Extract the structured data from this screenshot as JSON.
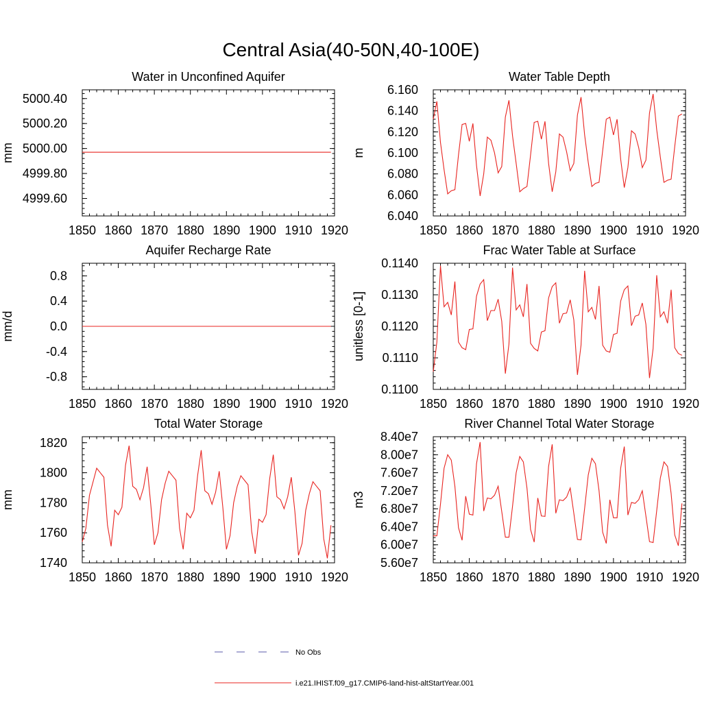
{
  "page": {
    "title": "Central Asia(40-50N,40-100E)"
  },
  "colors": {
    "series": "#e8231f",
    "no_obs": "#5a5aa8",
    "axis": "#000000"
  },
  "legend": [
    {
      "label": "No Obs",
      "style": "dashed",
      "color": "#5a5aa8"
    },
    {
      "label": "i.e21.IHIST.f09_g17.CMIP6-land-hist-altStartYear.001",
      "style": "solid",
      "color": "#e8231f"
    }
  ],
  "chart_data": [
    {
      "type": "line",
      "title": "Water in Unconfined Aquifer",
      "ylabel": "mm",
      "xlim": [
        1850,
        1920
      ],
      "ylim": [
        4999.46,
        5000.47
      ],
      "x_ticks": [
        "1850",
        "1860",
        "1870",
        "1880",
        "1890",
        "1900",
        "1910",
        "1920"
      ],
      "y_ticks": [
        {
          "value": 4999.6,
          "label": "4999.60"
        },
        {
          "value": 4999.8,
          "label": "4999.80"
        },
        {
          "value": 5000.0,
          "label": "5000.00"
        },
        {
          "value": 5000.2,
          "label": "5000.20"
        },
        {
          "value": 5000.4,
          "label": "5000.40"
        }
      ],
      "series": [
        {
          "x_start": 1850,
          "x_step": 1,
          "values": [
            4999.97,
            4999.97,
            4999.97,
            4999.97,
            4999.97,
            4999.97,
            4999.97,
            4999.97,
            4999.97,
            4999.97,
            4999.97,
            4999.97,
            4999.97,
            4999.97,
            4999.97,
            4999.97,
            4999.97,
            4999.97,
            4999.97,
            4999.97,
            4999.97,
            4999.97,
            4999.97,
            4999.97,
            4999.97,
            4999.97,
            4999.97,
            4999.97,
            4999.97,
            4999.97,
            4999.97,
            4999.97,
            4999.97,
            4999.97,
            4999.97,
            4999.97,
            4999.97,
            4999.97,
            4999.97,
            4999.97,
            4999.97,
            4999.97,
            4999.97,
            4999.97,
            4999.97,
            4999.97,
            4999.97,
            4999.97,
            4999.97,
            4999.97,
            4999.97,
            4999.97,
            4999.97,
            4999.97,
            4999.97,
            4999.97,
            4999.97,
            4999.97,
            4999.97,
            4999.97,
            4999.97,
            4999.97,
            4999.97,
            4999.97,
            4999.97,
            4999.97,
            4999.97,
            4999.97,
            4999.97,
            4999.97
          ]
        }
      ]
    },
    {
      "type": "line",
      "title": "Water Table Depth",
      "ylabel": "m",
      "xlim": [
        1850,
        1920
      ],
      "ylim": [
        6.04,
        6.16
      ],
      "x_ticks": [
        "1850",
        "1860",
        "1870",
        "1880",
        "1890",
        "1900",
        "1910",
        "1920"
      ],
      "y_ticks": [
        {
          "value": 6.04,
          "label": "6.040"
        },
        {
          "value": 6.06,
          "label": "6.060"
        },
        {
          "value": 6.08,
          "label": "6.080"
        },
        {
          "value": 6.1,
          "label": "6.100"
        },
        {
          "value": 6.12,
          "label": "6.120"
        },
        {
          "value": 6.14,
          "label": "6.140"
        },
        {
          "value": 6.16,
          "label": "6.160"
        }
      ],
      "series": [
        {
          "x_start": 1850,
          "x_step": 1,
          "values": [
            6.132,
            6.149,
            6.11,
            6.084,
            6.061,
            6.064,
            6.065,
            6.098,
            6.127,
            6.128,
            6.111,
            6.128,
            6.088,
            6.059,
            6.08,
            6.115,
            6.112,
            6.1,
            6.081,
            6.087,
            6.134,
            6.15,
            6.116,
            6.09,
            6.063,
            6.066,
            6.068,
            6.098,
            6.129,
            6.13,
            6.113,
            6.13,
            6.09,
            6.063,
            6.082,
            6.118,
            6.115,
            6.101,
            6.083,
            6.09,
            6.136,
            6.153,
            6.117,
            6.091,
            6.068,
            6.071,
            6.072,
            6.102,
            6.132,
            6.134,
            6.117,
            6.132,
            6.094,
            6.067,
            6.086,
            6.121,
            6.118,
            6.105,
            6.086,
            6.093,
            6.138,
            6.156,
            6.122,
            6.096,
            6.072,
            6.074,
            6.075,
            6.106,
            6.135,
            6.137
          ]
        }
      ]
    },
    {
      "type": "line",
      "title": "Aquifer Recharge Rate",
      "ylabel": "mm/d",
      "xlim": [
        1850,
        1920
      ],
      "ylim": [
        -1.0,
        1.0
      ],
      "x_ticks": [
        "1850",
        "1860",
        "1870",
        "1880",
        "1890",
        "1900",
        "1910",
        "1920"
      ],
      "y_ticks": [
        {
          "value": -0.8,
          "label": "-0.8"
        },
        {
          "value": -0.4,
          "label": "-0.4"
        },
        {
          "value": 0.0,
          "label": "0.0"
        },
        {
          "value": 0.4,
          "label": "0.4"
        },
        {
          "value": 0.8,
          "label": "0.8"
        }
      ],
      "series": [
        {
          "x_start": 1850,
          "x_step": 1,
          "values": [
            0,
            0,
            0,
            0,
            0,
            0,
            0,
            0,
            0,
            0,
            0,
            0,
            0,
            0,
            0,
            0,
            0,
            0,
            0,
            0,
            0,
            0,
            0,
            0,
            0,
            0,
            0,
            0,
            0,
            0,
            0,
            0,
            0,
            0,
            0,
            0,
            0,
            0,
            0,
            0,
            0,
            0,
            0,
            0,
            0,
            0,
            0,
            0,
            0,
            0,
            0,
            0,
            0,
            0,
            0,
            0,
            0,
            0,
            0,
            0,
            0,
            0,
            0,
            0,
            0,
            0,
            0,
            0,
            0,
            0
          ]
        }
      ]
    },
    {
      "type": "line",
      "title": "Frac Water Table at Surface",
      "ylabel": "unitless [0-1]",
      "xlim": [
        1850,
        1920
      ],
      "ylim": [
        0.11,
        0.114
      ],
      "x_ticks": [
        "1850",
        "1860",
        "1870",
        "1880",
        "1890",
        "1900",
        "1910",
        "1920"
      ],
      "y_ticks": [
        {
          "value": 0.11,
          "label": "0.1100"
        },
        {
          "value": 0.111,
          "label": "0.1110"
        },
        {
          "value": 0.112,
          "label": "0.1120"
        },
        {
          "value": 0.113,
          "label": "0.1130"
        },
        {
          "value": 0.114,
          "label": "0.1140"
        }
      ],
      "series": [
        {
          "x_start": 1850,
          "x_step": 1,
          "values": [
            0.11056,
            0.1115,
            0.11392,
            0.11262,
            0.11276,
            0.11236,
            0.11342,
            0.1115,
            0.11132,
            0.11126,
            0.1119,
            0.11192,
            0.11296,
            0.11334,
            0.11348,
            0.11218,
            0.1125,
            0.1125,
            0.11286,
            0.11216,
            0.1105,
            0.11144,
            0.11386,
            0.11252,
            0.11268,
            0.1123,
            0.11334,
            0.11146,
            0.1113,
            0.11122,
            0.11182,
            0.11186,
            0.1129,
            0.11326,
            0.11338,
            0.1121,
            0.1124,
            0.11242,
            0.11284,
            0.1122,
            0.11046,
            0.1114,
            0.11376,
            0.11246,
            0.1126,
            0.11222,
            0.11328,
            0.1114,
            0.11122,
            0.11118,
            0.11174,
            0.11178,
            0.1128,
            0.11316,
            0.11328,
            0.11202,
            0.11232,
            0.11236,
            0.11274,
            0.11206,
            0.11036,
            0.1113,
            0.11362,
            0.1123,
            0.11246,
            0.1121,
            0.11316,
            0.11132,
            0.11114,
            0.11108
          ]
        }
      ]
    },
    {
      "type": "line",
      "title": "Total Water Storage",
      "ylabel": "mm",
      "xlim": [
        1850,
        1920
      ],
      "ylim": [
        1740,
        1824
      ],
      "x_ticks": [
        "1850",
        "1860",
        "1870",
        "1880",
        "1890",
        "1900",
        "1910",
        "1920"
      ],
      "y_ticks": [
        {
          "value": 1740,
          "label": "1740"
        },
        {
          "value": 1760,
          "label": "1760"
        },
        {
          "value": 1780,
          "label": "1780"
        },
        {
          "value": 1800,
          "label": "1800"
        },
        {
          "value": 1820,
          "label": "1820"
        }
      ],
      "series": [
        {
          "x_start": 1850,
          "x_step": 1,
          "values": [
            1754,
            1763,
            1785,
            1794,
            1803,
            1800,
            1797,
            1765,
            1751,
            1775,
            1772,
            1777,
            1805,
            1818,
            1791,
            1789,
            1782,
            1790,
            1804,
            1779,
            1752,
            1760,
            1782,
            1793,
            1801,
            1798,
            1795,
            1763,
            1749,
            1773,
            1770,
            1775,
            1798,
            1815,
            1788,
            1786,
            1779,
            1787,
            1801,
            1777,
            1749,
            1758,
            1780,
            1791,
            1798,
            1795,
            1792,
            1761,
            1746,
            1769,
            1767,
            1772,
            1796,
            1812,
            1784,
            1782,
            1776,
            1784,
            1797,
            1774,
            1745,
            1753,
            1775,
            1786,
            1794,
            1791,
            1788,
            1756,
            1743,
            1765
          ]
        }
      ]
    },
    {
      "type": "line",
      "title": "River Channel Total Water Storage",
      "ylabel": "m3",
      "xlim": [
        1850,
        1920
      ],
      "ylim": [
        56000000.0,
        84000000.0
      ],
      "x_ticks": [
        "1850",
        "1860",
        "1870",
        "1880",
        "1890",
        "1900",
        "1910",
        "1920"
      ],
      "y_ticks": [
        {
          "value": 56000000.0,
          "label": "5.60e7"
        },
        {
          "value": 60000000.0,
          "label": "6.00e7"
        },
        {
          "value": 64000000.0,
          "label": "6.40e7"
        },
        {
          "value": 68000000.0,
          "label": "6.80e7"
        },
        {
          "value": 72000000.0,
          "label": "7.20e7"
        },
        {
          "value": 76000000.0,
          "label": "7.60e7"
        },
        {
          "value": 80000000.0,
          "label": "8.00e7"
        },
        {
          "value": 84000000.0,
          "label": "8.40e7"
        }
      ],
      "series": [
        {
          "x_start": 1850,
          "x_step": 1,
          "values": [
            62000000.0,
            62000000.0,
            69000000.0,
            77000000.0,
            80000000.0,
            78800000.0,
            73000000.0,
            63800000.0,
            61000000.0,
            70800000.0,
            66800000.0,
            66600000.0,
            78000000.0,
            82800000.0,
            67500000.0,
            70400000.0,
            70200000.0,
            71000000.0,
            73000000.0,
            67400000.0,
            61700000.0,
            61700000.0,
            68600000.0,
            76000000.0,
            79600000.0,
            78400000.0,
            72600000.0,
            63400000.0,
            60600000.0,
            70400000.0,
            66400000.0,
            66300000.0,
            77400000.0,
            82300000.0,
            67000000.0,
            70000000.0,
            69800000.0,
            70600000.0,
            72600000.0,
            67000000.0,
            61200000.0,
            61100000.0,
            68100000.0,
            75500000.0,
            79200000.0,
            78000000.0,
            72000000.0,
            62800000.0,
            60300000.0,
            70000000.0,
            66000000.0,
            66000000.0,
            77000000.0,
            81800000.0,
            66600000.0,
            69400000.0,
            69200000.0,
            70000000.0,
            72000000.0,
            66400000.0,
            60700000.0,
            60500000.0,
            67600000.0,
            74800000.0,
            78400000.0,
            77400000.0,
            71400000.0,
            62200000.0,
            59800000.0,
            69200000.0
          ]
        }
      ]
    }
  ]
}
